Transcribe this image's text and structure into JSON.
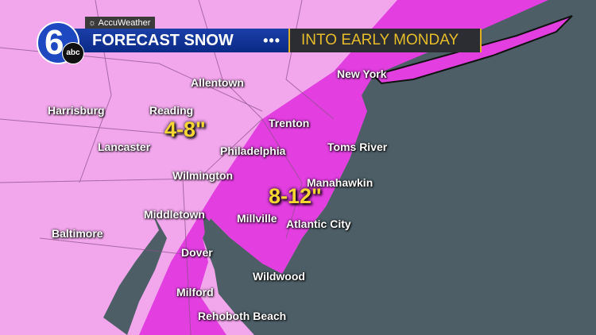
{
  "header": {
    "brand": "AccuWeather",
    "station_logo": "6abc",
    "title": "FORECAST SNOW",
    "separator": "•••",
    "subtitle": "INTO EARLY MONDAY"
  },
  "colors": {
    "land_light": "#f2a6ec",
    "heavy_zone": "#e23ee0",
    "ocean": "#4d5e66",
    "amount_text": "#f5d633"
  },
  "amounts": [
    {
      "label": "4-8\""
    },
    {
      "label": "8-12\""
    }
  ],
  "cities": [
    "Allentown",
    "New York",
    "Harrisburg",
    "Reading",
    "Trenton",
    "Lancaster",
    "Philadelphia",
    "Toms River",
    "Wilmington",
    "Manahawkin",
    "Middletown",
    "Millville",
    "Atlantic City",
    "Baltimore",
    "Dover",
    "Wildwood",
    "Milford",
    "Rehoboth Beach"
  ]
}
